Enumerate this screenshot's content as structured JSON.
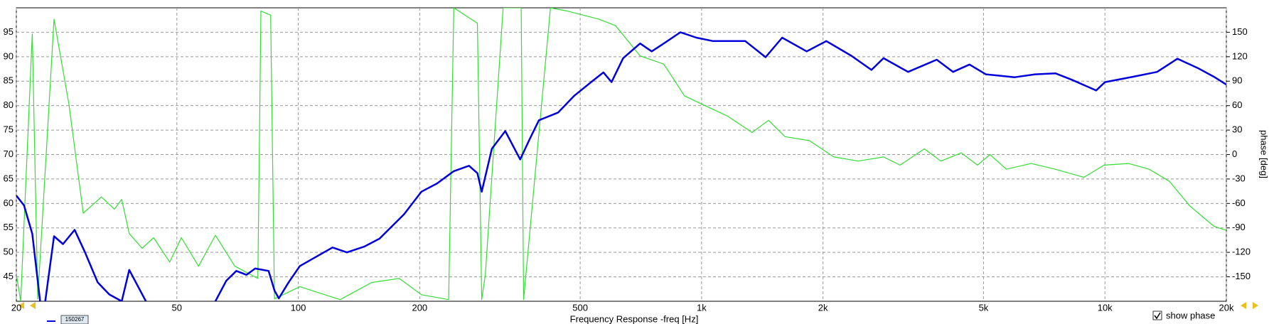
{
  "chart_data": {
    "type": "line",
    "xlabel": "Frequency Response -freq [Hz]",
    "y2label": "phase [deg]",
    "xlog": true,
    "grid": true,
    "xlim": [
      20,
      20000
    ],
    "xticks": [
      20,
      50,
      100,
      200,
      500,
      {
        "value": 1000,
        "label": "1k"
      },
      {
        "value": 2000,
        "label": "2k"
      },
      {
        "value": 5000,
        "label": "5k"
      },
      {
        "value": 10000,
        "label": "10k"
      },
      {
        "value": 20000,
        "label": "20k"
      }
    ],
    "ylim": [
      40,
      100
    ],
    "yticks": [
      45,
      50,
      55,
      60,
      65,
      70,
      75,
      80,
      85,
      90,
      95
    ],
    "y2lim": [
      -180,
      180
    ],
    "y2ticks": [
      -150,
      -120,
      -90,
      -60,
      -30,
      0,
      30,
      60,
      90,
      120,
      150
    ],
    "show_phase": "show phase",
    "series": [
      {
        "name": "150267",
        "color": "#0000dd",
        "x": [
          20,
          20.9,
          21.9,
          22.9,
          23.5,
          24.8,
          26.1,
          27.9,
          29.6,
          31.8,
          34.0,
          36.5,
          38.1,
          41.9,
          null,
          62.3,
          66.3,
          70.2,
          74.4,
          78.2,
          84.4,
          87.3,
          89.5,
          94.7,
          100.9,
          121.6,
          132,
          146,
          159,
          183,
          202,
          221,
          243,
          265,
          278,
          285,
          302,
          326,
          355,
          375,
          395,
          441,
          483,
          532,
          571,
          598,
          639,
          704,
          752,
          806,
          886,
          971,
          1067,
          1283,
          1441,
          1584,
          1822,
          2038,
          2351,
          2637,
          2825,
          3250,
          3828,
          4203,
          4615,
          5066,
          5977,
          6712,
          7535,
          8274,
          9513,
          10000,
          11717,
          13470,
          15130,
          16980,
          18640,
          20000
        ],
        "values": [
          61.6,
          59.6,
          53.8,
          40,
          39,
          53.3,
          51.7,
          54.6,
          50,
          43.9,
          41.4,
          40,
          46.4,
          40,
          null,
          40,
          44.2,
          46.2,
          45.4,
          46.7,
          46.2,
          42.2,
          40.6,
          43.9,
          47.2,
          51,
          50,
          51.2,
          52.8,
          57.8,
          62.4,
          64.1,
          66.6,
          67.7,
          66.2,
          62.4,
          71.2,
          74.8,
          69.0,
          73.2,
          77,
          78.6,
          82,
          84.8,
          86.8,
          84.8,
          89.7,
          92.7,
          91.1,
          92.7,
          95,
          93.9,
          93.2,
          93.2,
          89.9,
          93.9,
          91.1,
          93.2,
          90.2,
          87.3,
          89.7,
          86.9,
          89.4,
          86.9,
          88.4,
          86.4,
          85.8,
          86.4,
          86.6,
          85.3,
          83.1,
          84.8,
          85.9,
          86.9,
          89.6,
          87.7,
          85.9,
          84.3
        ]
      },
      {
        "color": "#33dd33",
        "axis": "y2",
        "x": [
          20,
          20.5,
          21.9,
          22.6,
          24.8,
          27.0,
          29.3,
          32.5,
          35,
          36.5,
          38.1,
          41,
          43.8,
          48,
          51.3,
          56.6,
          62.3,
          69.6,
          79.4,
          80.8,
          85.4,
          87.3,
          100.9,
          127,
          152,
          178,
          202,
          236,
          243,
          278,
          285,
          291,
          322,
          357,
          362,
          422,
          465,
          557,
          612,
          704,
          806,
          907,
          1000,
          1161,
          1334,
          1465,
          1610,
          1851,
          2128,
          2444,
          2825,
          3103,
          3567,
          3917,
          4404,
          4830,
          5188,
          5697,
          6555,
          7535,
          8863,
          9950,
          11440,
          12870,
          14460,
          16230,
          18640,
          20000
        ],
        "values": [
          -147,
          -180,
          148,
          -177,
          166,
          62,
          -72,
          -52,
          -67,
          -55,
          -97,
          -115,
          -102,
          -132,
          -102,
          -137,
          -99,
          -137,
          -152,
          176,
          171,
          -177,
          -162,
          -178,
          -157,
          -152,
          -172,
          -178,
          180,
          161,
          -178,
          -147,
          180,
          180,
          -178,
          180,
          176,
          166,
          158,
          121,
          111,
          72,
          62,
          47,
          27,
          42,
          22,
          17,
          -3,
          -8,
          -3,
          -13,
          7,
          -8,
          2,
          -13,
          0,
          -18,
          -11,
          -18,
          -28,
          -13,
          -11,
          -18,
          -33,
          -63,
          -88,
          -93
        ]
      }
    ]
  }
}
